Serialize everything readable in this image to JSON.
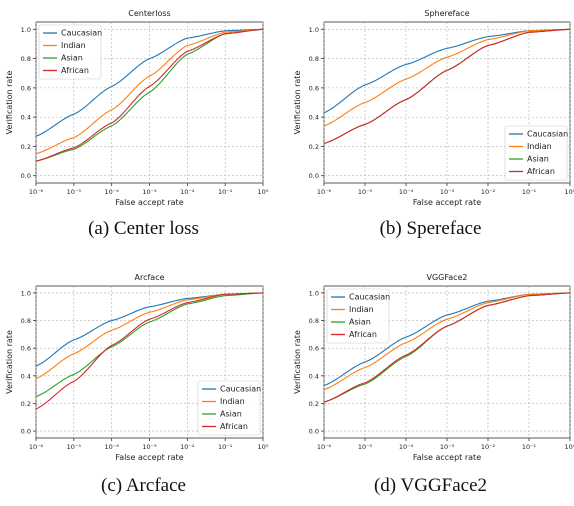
{
  "figure": {
    "captions": [
      "(a)  Center loss",
      "(b)  Spereface",
      "(c)  Arcface",
      "(d)  VGGFace2"
    ]
  },
  "colors": {
    "Caucasian": "#1f77b4",
    "Indian": "#ff7f0e",
    "Asian": "#2ca02c",
    "African": "#d62728"
  },
  "chart_data": [
    {
      "type": "line",
      "title": "Centerloss",
      "xlabel": "False accept rate",
      "ylabel": "Verification rate",
      "x_scale": "log",
      "xlim": [
        1e-06,
        1
      ],
      "ylim": [
        0,
        1
      ],
      "x_ticks": [
        "10⁻⁶",
        "10⁻⁵",
        "10⁻⁴",
        "10⁻³",
        "10⁻²",
        "10⁻¹",
        "10⁰"
      ],
      "y_ticks": [
        "0.0",
        "0.2",
        "0.4",
        "0.6",
        "0.8",
        "1.0"
      ],
      "grid": true,
      "legend_position": "upper-left",
      "x": [
        1e-06,
        1e-05,
        0.0001,
        0.001,
        0.01,
        0.1,
        1
      ],
      "series": [
        {
          "name": "Caucasian",
          "values": [
            0.27,
            0.42,
            0.61,
            0.8,
            0.94,
            0.99,
            1.0
          ]
        },
        {
          "name": "Indian",
          "values": [
            0.15,
            0.26,
            0.45,
            0.68,
            0.89,
            0.98,
            1.0
          ]
        },
        {
          "name": "Asian",
          "values": [
            0.1,
            0.18,
            0.34,
            0.57,
            0.83,
            0.97,
            1.0
          ]
        },
        {
          "name": "African",
          "values": [
            0.1,
            0.19,
            0.36,
            0.61,
            0.85,
            0.97,
            1.0
          ]
        }
      ]
    },
    {
      "type": "line",
      "title": "Sphereface",
      "xlabel": "False accept rate",
      "ylabel": "Verification rate",
      "x_scale": "log",
      "xlim": [
        1e-06,
        1
      ],
      "ylim": [
        0,
        1
      ],
      "x_ticks": [
        "10⁻⁶",
        "10⁻⁵",
        "10⁻⁴",
        "10⁻³",
        "10⁻²",
        "10⁻¹",
        "10⁰"
      ],
      "y_ticks": [
        "0.0",
        "0.2",
        "0.4",
        "0.6",
        "0.8",
        "1.0"
      ],
      "grid": true,
      "legend_position": "lower-right",
      "x": [
        1e-06,
        1e-05,
        0.0001,
        0.001,
        0.01,
        0.1,
        1
      ],
      "series": [
        {
          "name": "Caucasian",
          "values": [
            0.43,
            0.62,
            0.76,
            0.87,
            0.95,
            0.99,
            1.0
          ]
        },
        {
          "name": "Indian",
          "values": [
            0.34,
            0.5,
            0.66,
            0.81,
            0.93,
            0.99,
            1.0
          ]
        },
        {
          "name": "Asian",
          "values": [
            0.22,
            0.35,
            0.52,
            0.72,
            0.89,
            0.98,
            1.0
          ]
        },
        {
          "name": "African",
          "values": [
            0.22,
            0.35,
            0.52,
            0.72,
            0.89,
            0.98,
            1.0
          ]
        }
      ]
    },
    {
      "type": "line",
      "title": "Arcface",
      "xlabel": "False accept rate",
      "ylabel": "Verification rate",
      "x_scale": "log",
      "xlim": [
        1e-06,
        1
      ],
      "ylim": [
        0,
        1
      ],
      "x_ticks": [
        "10⁻⁶",
        "10⁻⁵",
        "10⁻⁴",
        "10⁻³",
        "10⁻²",
        "10⁻¹",
        "10⁰"
      ],
      "y_ticks": [
        "0.0",
        "0.2",
        "0.4",
        "0.6",
        "0.8",
        "1.0"
      ],
      "grid": true,
      "legend_position": "lower-right",
      "x": [
        1e-06,
        1e-05,
        0.0001,
        0.001,
        0.01,
        0.1,
        1
      ],
      "series": [
        {
          "name": "Caucasian",
          "values": [
            0.47,
            0.66,
            0.8,
            0.9,
            0.96,
            0.99,
            1.0
          ]
        },
        {
          "name": "Indian",
          "values": [
            0.38,
            0.56,
            0.73,
            0.86,
            0.95,
            0.99,
            1.0
          ]
        },
        {
          "name": "Asian",
          "values": [
            0.25,
            0.41,
            0.61,
            0.79,
            0.92,
            0.98,
            1.0
          ]
        },
        {
          "name": "African",
          "values": [
            0.16,
            0.36,
            0.62,
            0.81,
            0.93,
            0.99,
            1.0
          ]
        }
      ]
    },
    {
      "type": "line",
      "title": "VGGFace2",
      "xlabel": "False accept rate",
      "ylabel": "Verification rate",
      "x_scale": "log",
      "xlim": [
        1e-06,
        1
      ],
      "ylim": [
        0,
        1
      ],
      "x_ticks": [
        "10⁻⁶",
        "10⁻⁵",
        "10⁻⁴",
        "10⁻³",
        "10⁻²",
        "10⁻¹",
        "10⁰"
      ],
      "y_ticks": [
        "0.0",
        "0.2",
        "0.4",
        "0.6",
        "0.8",
        "1.0"
      ],
      "grid": true,
      "legend_position": "upper-left",
      "x": [
        1e-06,
        1e-05,
        0.0001,
        0.001,
        0.01,
        0.1,
        1
      ],
      "series": [
        {
          "name": "Caucasian",
          "values": [
            0.33,
            0.5,
            0.68,
            0.84,
            0.94,
            0.99,
            1.0
          ]
        },
        {
          "name": "Indian",
          "values": [
            0.3,
            0.46,
            0.64,
            0.81,
            0.93,
            0.99,
            1.0
          ]
        },
        {
          "name": "Asian",
          "values": [
            0.21,
            0.34,
            0.54,
            0.76,
            0.91,
            0.98,
            1.0
          ]
        },
        {
          "name": "African",
          "values": [
            0.21,
            0.35,
            0.55,
            0.76,
            0.91,
            0.98,
            1.0
          ]
        }
      ]
    }
  ]
}
